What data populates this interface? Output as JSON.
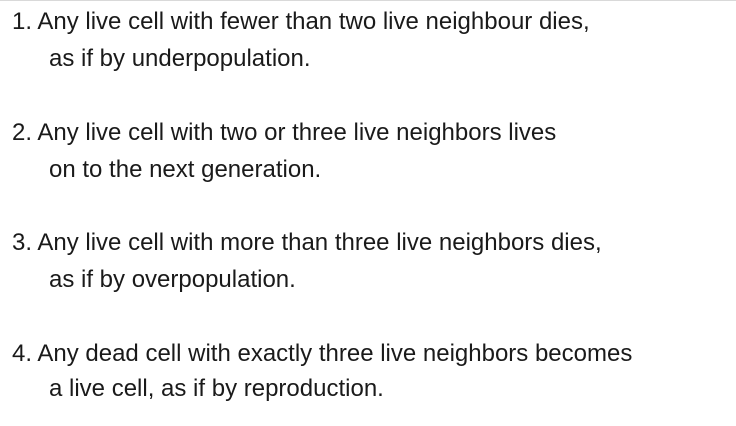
{
  "rules": [
    {
      "line1": "1. Any live cell with fewer than two live neighbour dies,",
      "line2": "as if by underpopulation."
    },
    {
      "line1": "2. Any live cell with two or three live neighbors lives",
      "line2": "on to the next generation."
    },
    {
      "line1": "3. Any live cell with more than three live neighbors dies,",
      "line2": "as if by overpopulation."
    },
    {
      "line1": "4. Any dead cell with exactly three live neighbors becomes",
      "line2": "a live cell, as if by reproduction."
    }
  ]
}
